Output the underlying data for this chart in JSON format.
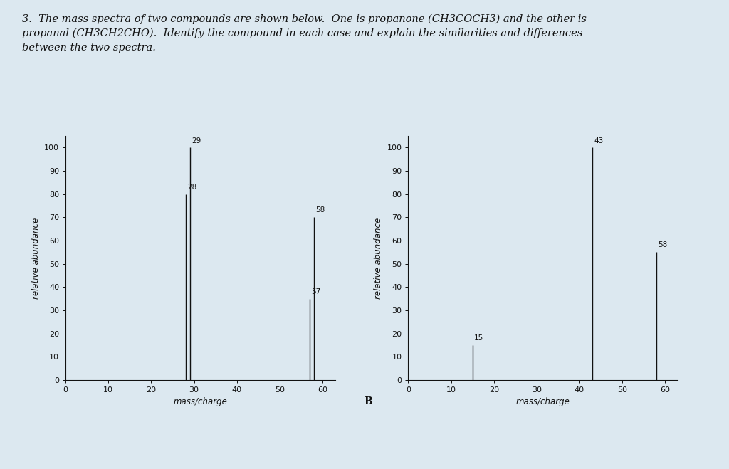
{
  "background_color": "#dce8f0",
  "chart_A": {
    "peaks": [
      {
        "mz": 28,
        "abundance": 80
      },
      {
        "mz": 29,
        "abundance": 100
      },
      {
        "mz": 57,
        "abundance": 35
      },
      {
        "mz": 58,
        "abundance": 70
      }
    ],
    "xlim": [
      0,
      63
    ],
    "ylim": [
      0,
      105
    ],
    "xticks": [
      0,
      10,
      20,
      30,
      40,
      50,
      60
    ],
    "yticks": [
      0,
      10,
      20,
      30,
      40,
      50,
      60,
      70,
      80,
      90,
      100
    ],
    "xlabel": "mass/charge",
    "ylabel": "relative abundance"
  },
  "chart_B": {
    "peaks": [
      {
        "mz": 15,
        "abundance": 15
      },
      {
        "mz": 43,
        "abundance": 100
      },
      {
        "mz": 58,
        "abundance": 55
      }
    ],
    "xlim": [
      0,
      63
    ],
    "ylim": [
      0,
      105
    ],
    "xticks": [
      0,
      10,
      20,
      30,
      40,
      50,
      60
    ],
    "yticks": [
      0,
      10,
      20,
      30,
      40,
      50,
      60,
      70,
      80,
      90,
      100
    ],
    "xlabel": "mass/charge",
    "ylabel": "relative abundance"
  },
  "title_line1": "3.  The mass spectra of two compounds are shown below.  One is propanone (CH3COCH3) and the other is",
  "title_line2": "propanal (CH3CH2CHO).  Identify the compound in each case and explain the similarities and differences",
  "title_line3": "between the two spectra.",
  "B_label": "B",
  "line_color": "#111111",
  "text_color": "#111111",
  "title_fontsize": 10.5,
  "axis_fontsize": 8.5,
  "tick_fontsize": 8,
  "peak_label_fontsize": 7.5
}
